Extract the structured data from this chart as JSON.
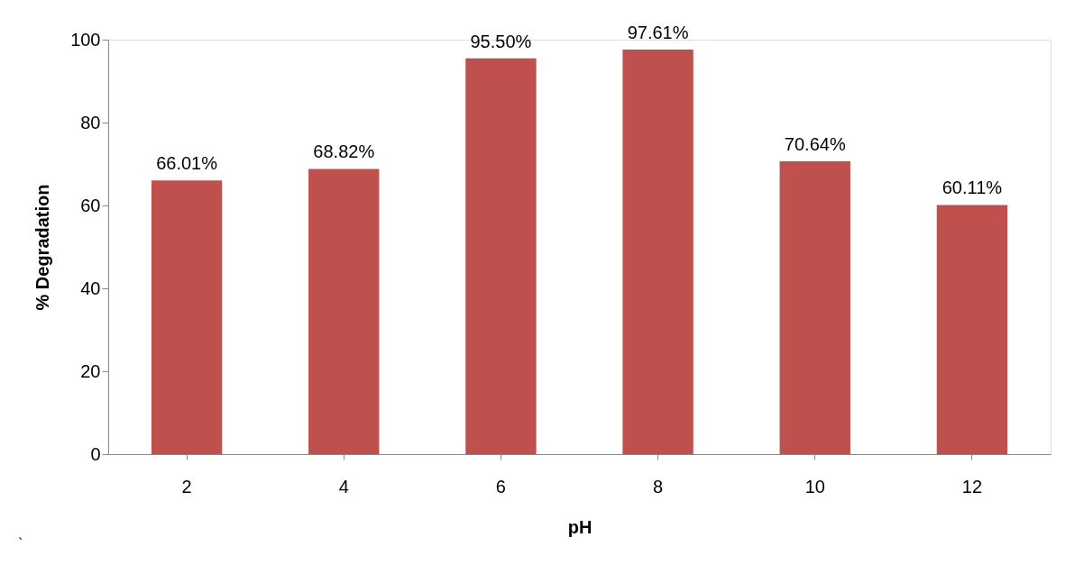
{
  "chart_data": {
    "type": "bar",
    "xlabel": "pH",
    "ylabel": "% Degradation",
    "categories": [
      "2",
      "4",
      "6",
      "8",
      "10",
      "12"
    ],
    "values": [
      66.01,
      68.82,
      95.5,
      97.61,
      70.64,
      60.11
    ],
    "value_labels": [
      "66.01%",
      "68.82%",
      "95.50%",
      "97.61%",
      "70.64%",
      "60.11%"
    ],
    "color": "#c0504d",
    "ylim": [
      0,
      100
    ],
    "yticks": [
      0,
      20,
      40,
      60,
      80,
      100
    ],
    "grid": false,
    "annotations": [
      "`"
    ]
  }
}
